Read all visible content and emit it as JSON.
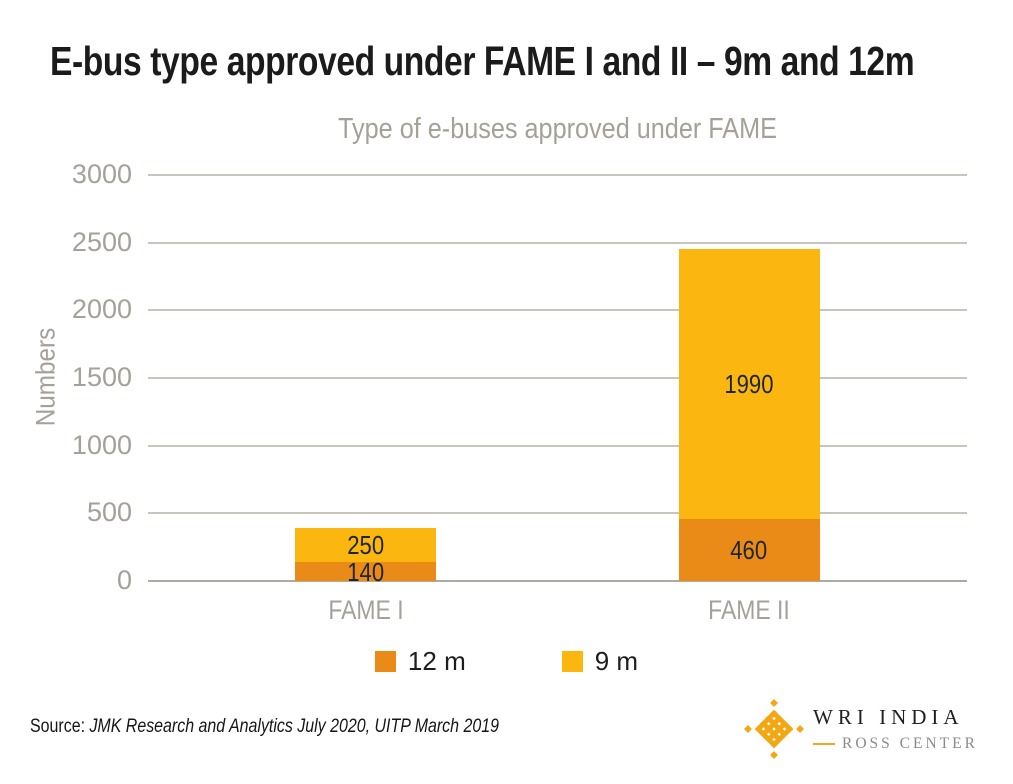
{
  "header": {
    "title": "E-bus type approved under FAME I and II – 9m and 12m"
  },
  "chart_data": {
    "type": "bar",
    "stacked": true,
    "title": "Type of e-buses approved under FAME",
    "xlabel": "",
    "ylabel": "Numbers",
    "categories": [
      "FAME I",
      "FAME II"
    ],
    "series": [
      {
        "name": "12 m",
        "color": "#ea8a17",
        "values": [
          140,
          460
        ]
      },
      {
        "name": "9 m",
        "color": "#fbb70f",
        "values": [
          250,
          1990
        ]
      }
    ],
    "totals": [
      390,
      2450
    ],
    "ylim": [
      0,
      3000
    ],
    "yticks": [
      0,
      500,
      1000,
      1500,
      2000,
      2500,
      3000
    ],
    "grid": true,
    "legend_position": "bottom"
  },
  "footer": {
    "source_prefix": "Source: ",
    "source_text": "JMK Research and Analytics July 2020, UITP March 2019",
    "logo": {
      "line1": "WRI INDIA",
      "line2": "ROSS CENTER",
      "brand_color": "#f3a712"
    }
  },
  "colors": {
    "title_text": "#1b1b1b",
    "axis_text": "#a5a099",
    "gridline": "#c9c5bd",
    "bar_label_text": "#1d2630"
  }
}
